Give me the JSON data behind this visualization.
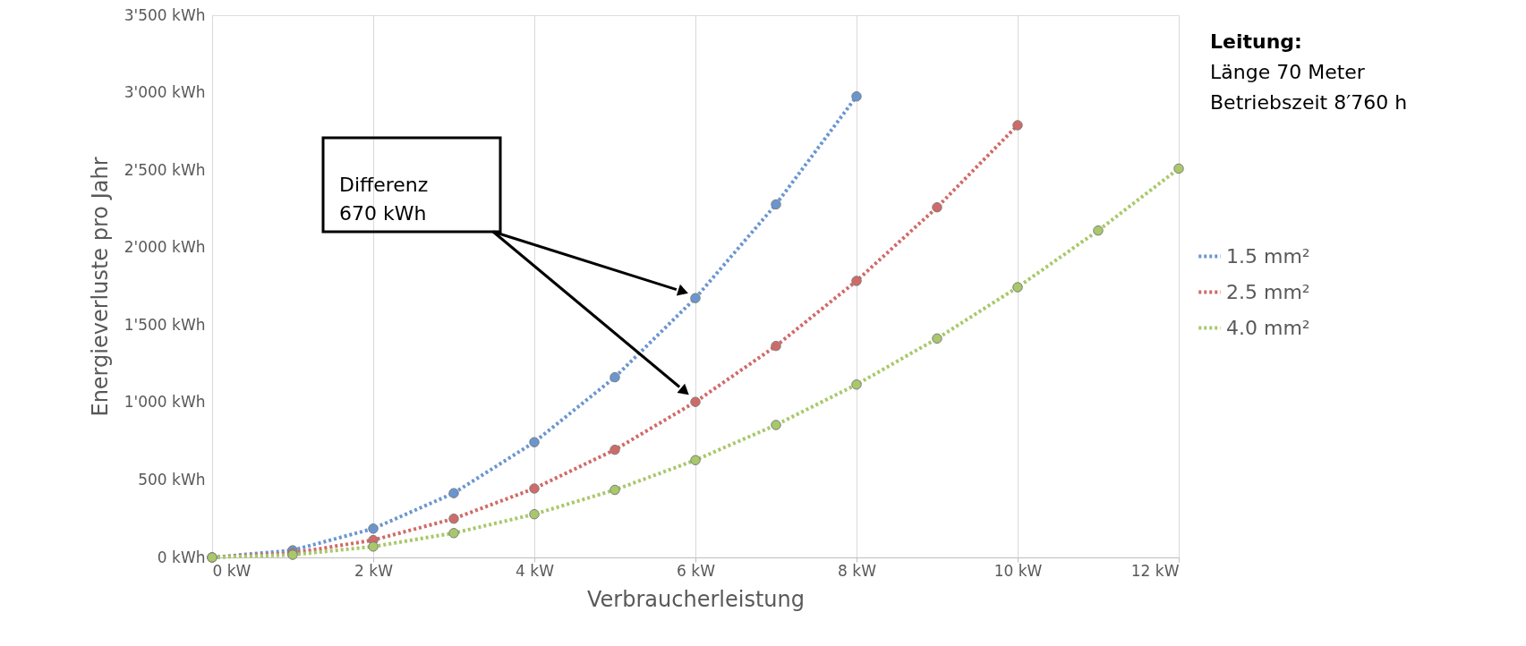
{
  "chart_data": {
    "type": "line",
    "xlabel": "Verbraucherleistung",
    "ylabel": "Energieverluste pro Jahr",
    "xlim": [
      0,
      12
    ],
    "ylim": [
      0,
      3500
    ],
    "xticks": [
      {
        "value": 0,
        "label": "0 kW"
      },
      {
        "value": 2,
        "label": "2 kW"
      },
      {
        "value": 4,
        "label": "4 kW"
      },
      {
        "value": 6,
        "label": "6 kW"
      },
      {
        "value": 8,
        "label": "8 kW"
      },
      {
        "value": 10,
        "label": "10 kW"
      },
      {
        "value": 12,
        "label": "12 kW"
      }
    ],
    "yticks": [
      {
        "value": 0,
        "label": "0 kWh"
      },
      {
        "value": 500,
        "label": "500 kWh"
      },
      {
        "value": 1000,
        "label": "1'000 kWh"
      },
      {
        "value": 1500,
        "label": "1'500 kWh"
      },
      {
        "value": 2000,
        "label": "2'000 kWh"
      },
      {
        "value": 2500,
        "label": "2'500 kWh"
      },
      {
        "value": 3000,
        "label": "3'000 kWh"
      },
      {
        "value": 3500,
        "label": "3'500 kWh"
      }
    ],
    "series": [
      {
        "name": "1.5 mm²",
        "color": "#6a96d0",
        "x": [
          0,
          1,
          2,
          3,
          4,
          5,
          6,
          7,
          8
        ],
        "values": [
          0,
          46,
          186,
          415,
          744,
          1163,
          1674,
          2279,
          2976
        ]
      },
      {
        "name": "2.5 mm²",
        "color": "#d06a68",
        "x": [
          0,
          1,
          2,
          3,
          4,
          5,
          6,
          7,
          8,
          9,
          10
        ],
        "values": [
          0,
          28,
          112,
          250,
          445,
          695,
          1004,
          1365,
          1785,
          2260,
          2790
        ]
      },
      {
        "name": "4.0 mm²",
        "color": "#a8c86a",
        "x": [
          0,
          1,
          2,
          3,
          4,
          5,
          6,
          7,
          8,
          9,
          10,
          11,
          12
        ],
        "values": [
          0,
          17,
          70,
          157,
          279,
          436,
          628,
          855,
          1116,
          1413,
          1744,
          2110,
          2510
        ]
      }
    ],
    "annotations": [
      "Differenz\n670 kWh",
      "Leitung:",
      "Länge 70 Meter",
      "Betriebszeit 8′760 h"
    ],
    "marker": "circle",
    "line_style": "dotted",
    "grid": "x",
    "legend": "right"
  }
}
